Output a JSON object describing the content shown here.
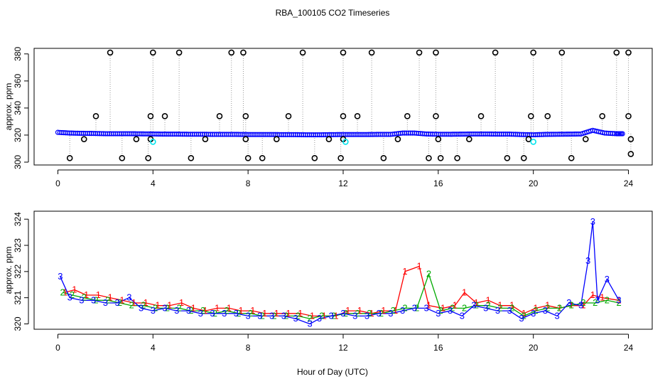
{
  "title": "RBA_100105  CO2 Timeseries",
  "xlabel": "Hour of Day (UTC)",
  "colors": {
    "black": "#000000",
    "blue": "#0000ff",
    "red": "#ff0000",
    "green": "#00aa00",
    "cyan": "#00e5ee",
    "gray": "#999999",
    "axis": "#000000"
  },
  "chart_data": [
    {
      "type": "scatter",
      "panel": "top",
      "ylabel": "approx. ppm",
      "xlim": [
        -1,
        25
      ],
      "ylim": [
        300,
        382
      ],
      "xticks": [
        0,
        4,
        8,
        12,
        16,
        20,
        24
      ],
      "yticks": [
        300,
        320,
        340,
        360,
        380
      ],
      "grid": false,
      "baseline": {
        "name": "",
        "color": "#0000ff",
        "x": [
          0.0,
          0.5,
          1.0,
          1.5,
          2.0,
          2.5,
          3.0,
          3.5,
          4.0,
          4.5,
          5.0,
          5.5,
          6.0,
          6.5,
          7.0,
          7.5,
          8.0,
          8.5,
          9.0,
          9.5,
          10.0,
          10.5,
          11.0,
          11.5,
          12.0,
          12.5,
          13.0,
          13.5,
          14.0,
          14.5,
          15.0,
          15.5,
          16.0,
          16.5,
          17.0,
          17.5,
          18.0,
          18.5,
          19.0,
          19.5,
          20.0,
          20.5,
          21.0,
          21.5,
          22.0,
          22.5,
          23.0,
          23.5,
          23.8
        ],
        "values": [
          322,
          321.5,
          321.3,
          321.2,
          321,
          321,
          321,
          320.9,
          320.8,
          320.7,
          320.7,
          320.6,
          320.6,
          320.5,
          320.5,
          320.5,
          320.4,
          320.4,
          320.4,
          320.3,
          320.3,
          320.2,
          320.2,
          320.3,
          320.4,
          320.4,
          320.4,
          320.5,
          320.5,
          321.5,
          321.5,
          320.8,
          320.6,
          320.6,
          320.7,
          320.8,
          320.8,
          320.7,
          320.7,
          320.4,
          320.2,
          320.5,
          320.6,
          320.7,
          320.8,
          323.5,
          321.5,
          321,
          321
        ]
      },
      "outliers": {
        "name": "",
        "color": "#000000",
        "points": [
          [
            0.5,
            303
          ],
          [
            1.1,
            317
          ],
          [
            1.6,
            334
          ],
          [
            2.2,
            381
          ],
          [
            2.7,
            303
          ],
          [
            3.3,
            317
          ],
          [
            3.8,
            303
          ],
          [
            3.9,
            317
          ],
          [
            3.9,
            334
          ],
          [
            4.0,
            381
          ],
          [
            4.5,
            334
          ],
          [
            5.1,
            381
          ],
          [
            5.6,
            303
          ],
          [
            6.2,
            317
          ],
          [
            6.8,
            334
          ],
          [
            7.3,
            381
          ],
          [
            7.8,
            381
          ],
          [
            7.9,
            334
          ],
          [
            7.9,
            317
          ],
          [
            8.0,
            303
          ],
          [
            8.6,
            303
          ],
          [
            9.2,
            317
          ],
          [
            9.7,
            334
          ],
          [
            10.3,
            381
          ],
          [
            10.8,
            303
          ],
          [
            11.4,
            317
          ],
          [
            11.9,
            303
          ],
          [
            12.0,
            334
          ],
          [
            12.0,
            381
          ],
          [
            12.0,
            317
          ],
          [
            12.6,
            334
          ],
          [
            13.2,
            381
          ],
          [
            13.7,
            303
          ],
          [
            14.3,
            317
          ],
          [
            14.7,
            334
          ],
          [
            15.2,
            381
          ],
          [
            15.6,
            303
          ],
          [
            15.9,
            381
          ],
          [
            15.9,
            334
          ],
          [
            16.0,
            317
          ],
          [
            16.1,
            303
          ],
          [
            16.8,
            303
          ],
          [
            17.3,
            317
          ],
          [
            17.8,
            334
          ],
          [
            18.4,
            381
          ],
          [
            18.9,
            303
          ],
          [
            19.6,
            303
          ],
          [
            19.8,
            317
          ],
          [
            19.9,
            334
          ],
          [
            20.0,
            381
          ],
          [
            20.6,
            334
          ],
          [
            21.2,
            381
          ],
          [
            21.6,
            303
          ],
          [
            22.2,
            317
          ],
          [
            22.9,
            334
          ],
          [
            23.5,
            381
          ],
          [
            24.0,
            381
          ],
          [
            24.0,
            334
          ],
          [
            24.1,
            317
          ],
          [
            24.1,
            306
          ]
        ]
      },
      "cyan_points": {
        "name": "",
        "color": "#00e5ee",
        "points": [
          [
            4.0,
            315
          ],
          [
            12.1,
            315
          ],
          [
            20.0,
            315
          ]
        ]
      }
    },
    {
      "type": "line",
      "panel": "bottom",
      "ylabel": "approx. ppm",
      "xlim": [
        -1,
        25
      ],
      "ylim": [
        319.85,
        324.25
      ],
      "xticks": [
        0,
        4,
        8,
        12,
        16,
        20,
        24
      ],
      "yticks": [
        320,
        321,
        322,
        323,
        324
      ],
      "grid": false,
      "series": [
        {
          "name": "",
          "label": "1",
          "color": "#ff0000",
          "x": [
            0.3,
            0.7,
            1.2,
            1.7,
            2.2,
            2.7,
            3.2,
            3.7,
            4.2,
            4.7,
            5.2,
            5.7,
            6.2,
            6.7,
            7.2,
            7.7,
            8.2,
            8.7,
            9.2,
            9.7,
            10.2,
            10.7,
            11.2,
            11.7,
            12.2,
            12.7,
            13.2,
            13.7,
            14.2,
            14.6,
            15.2,
            15.6,
            16.2,
            16.7,
            17.1,
            17.6,
            18.1,
            18.6,
            19.1,
            19.6,
            20.1,
            20.6,
            21.1,
            21.6,
            22.1,
            22.5,
            22.9,
            23.6
          ],
          "values": [
            321.2,
            321.3,
            321.1,
            321.1,
            321.0,
            320.9,
            320.8,
            320.8,
            320.7,
            320.7,
            320.8,
            320.6,
            320.5,
            320.6,
            320.6,
            320.5,
            320.5,
            320.4,
            320.4,
            320.4,
            320.4,
            320.3,
            320.3,
            320.3,
            320.5,
            320.5,
            320.4,
            320.5,
            320.5,
            322.0,
            322.2,
            320.7,
            320.6,
            320.7,
            321.2,
            320.8,
            320.9,
            320.7,
            320.7,
            320.4,
            320.6,
            320.7,
            320.6,
            320.7,
            320.7,
            321.1,
            321.0,
            320.9
          ]
        },
        {
          "name": "",
          "label": "2",
          "color": "#00aa00",
          "x": [
            0.2,
            0.6,
            1.1,
            1.6,
            2.1,
            2.6,
            3.1,
            3.6,
            4.1,
            4.6,
            5.1,
            5.6,
            6.1,
            6.6,
            7.1,
            7.6,
            8.1,
            8.6,
            9.1,
            9.6,
            10.1,
            10.6,
            11.1,
            11.6,
            12.1,
            12.6,
            13.1,
            13.6,
            14.1,
            14.6,
            15.1,
            15.6,
            16.1,
            16.6,
            17.1,
            17.6,
            18.1,
            18.6,
            19.1,
            19.6,
            20.1,
            20.6,
            21.1,
            21.6,
            22.1,
            22.6,
            23.1,
            23.6
          ],
          "values": [
            321.2,
            321.1,
            321.0,
            320.9,
            320.9,
            320.8,
            320.7,
            320.7,
            320.6,
            320.6,
            320.6,
            320.5,
            320.5,
            320.4,
            320.5,
            320.4,
            320.4,
            320.3,
            320.3,
            320.3,
            320.3,
            320.2,
            320.3,
            320.3,
            320.4,
            320.4,
            320.4,
            320.4,
            320.5,
            320.6,
            320.6,
            321.9,
            320.5,
            320.6,
            320.6,
            320.7,
            320.7,
            320.6,
            320.6,
            320.3,
            320.5,
            320.6,
            320.6,
            320.7,
            320.8,
            320.8,
            320.9,
            320.8
          ]
        },
        {
          "name": "",
          "label": "3",
          "color": "#0000ff",
          "x": [
            0.1,
            0.5,
            1.0,
            1.5,
            2.0,
            2.5,
            3.0,
            3.5,
            4.0,
            4.5,
            5.0,
            5.5,
            6.0,
            6.5,
            7.0,
            7.5,
            8.0,
            8.5,
            9.0,
            9.5,
            10.0,
            10.6,
            11.0,
            11.5,
            12.0,
            12.5,
            13.0,
            13.5,
            14.0,
            14.5,
            15.0,
            15.5,
            16.0,
            16.5,
            17.0,
            17.5,
            18.0,
            18.5,
            19.0,
            19.5,
            20.0,
            20.5,
            21.0,
            21.5,
            22.0,
            22.3,
            22.5,
            22.7,
            23.1,
            23.6
          ],
          "values": [
            321.8,
            321.0,
            320.9,
            320.9,
            320.8,
            320.8,
            321.0,
            320.6,
            320.5,
            320.6,
            320.5,
            320.5,
            320.4,
            320.4,
            320.4,
            320.4,
            320.3,
            320.3,
            320.3,
            320.3,
            320.2,
            320.0,
            320.2,
            320.3,
            320.4,
            320.3,
            320.3,
            320.4,
            320.4,
            320.5,
            320.6,
            320.6,
            320.4,
            320.5,
            320.3,
            320.7,
            320.6,
            320.5,
            320.5,
            320.2,
            320.4,
            320.5,
            320.3,
            320.8,
            320.7,
            322.4,
            323.9,
            320.9,
            321.7,
            320.9
          ]
        }
      ]
    }
  ]
}
